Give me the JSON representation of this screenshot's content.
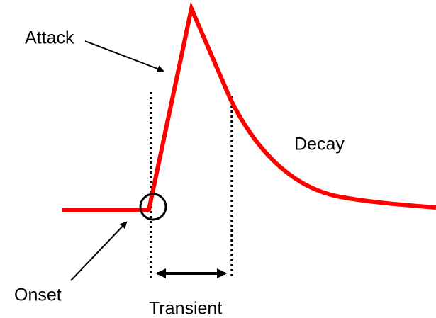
{
  "labels": {
    "attack": "Attack",
    "decay": "Decay",
    "onset": "Onset",
    "transient": "Transient"
  }
}
